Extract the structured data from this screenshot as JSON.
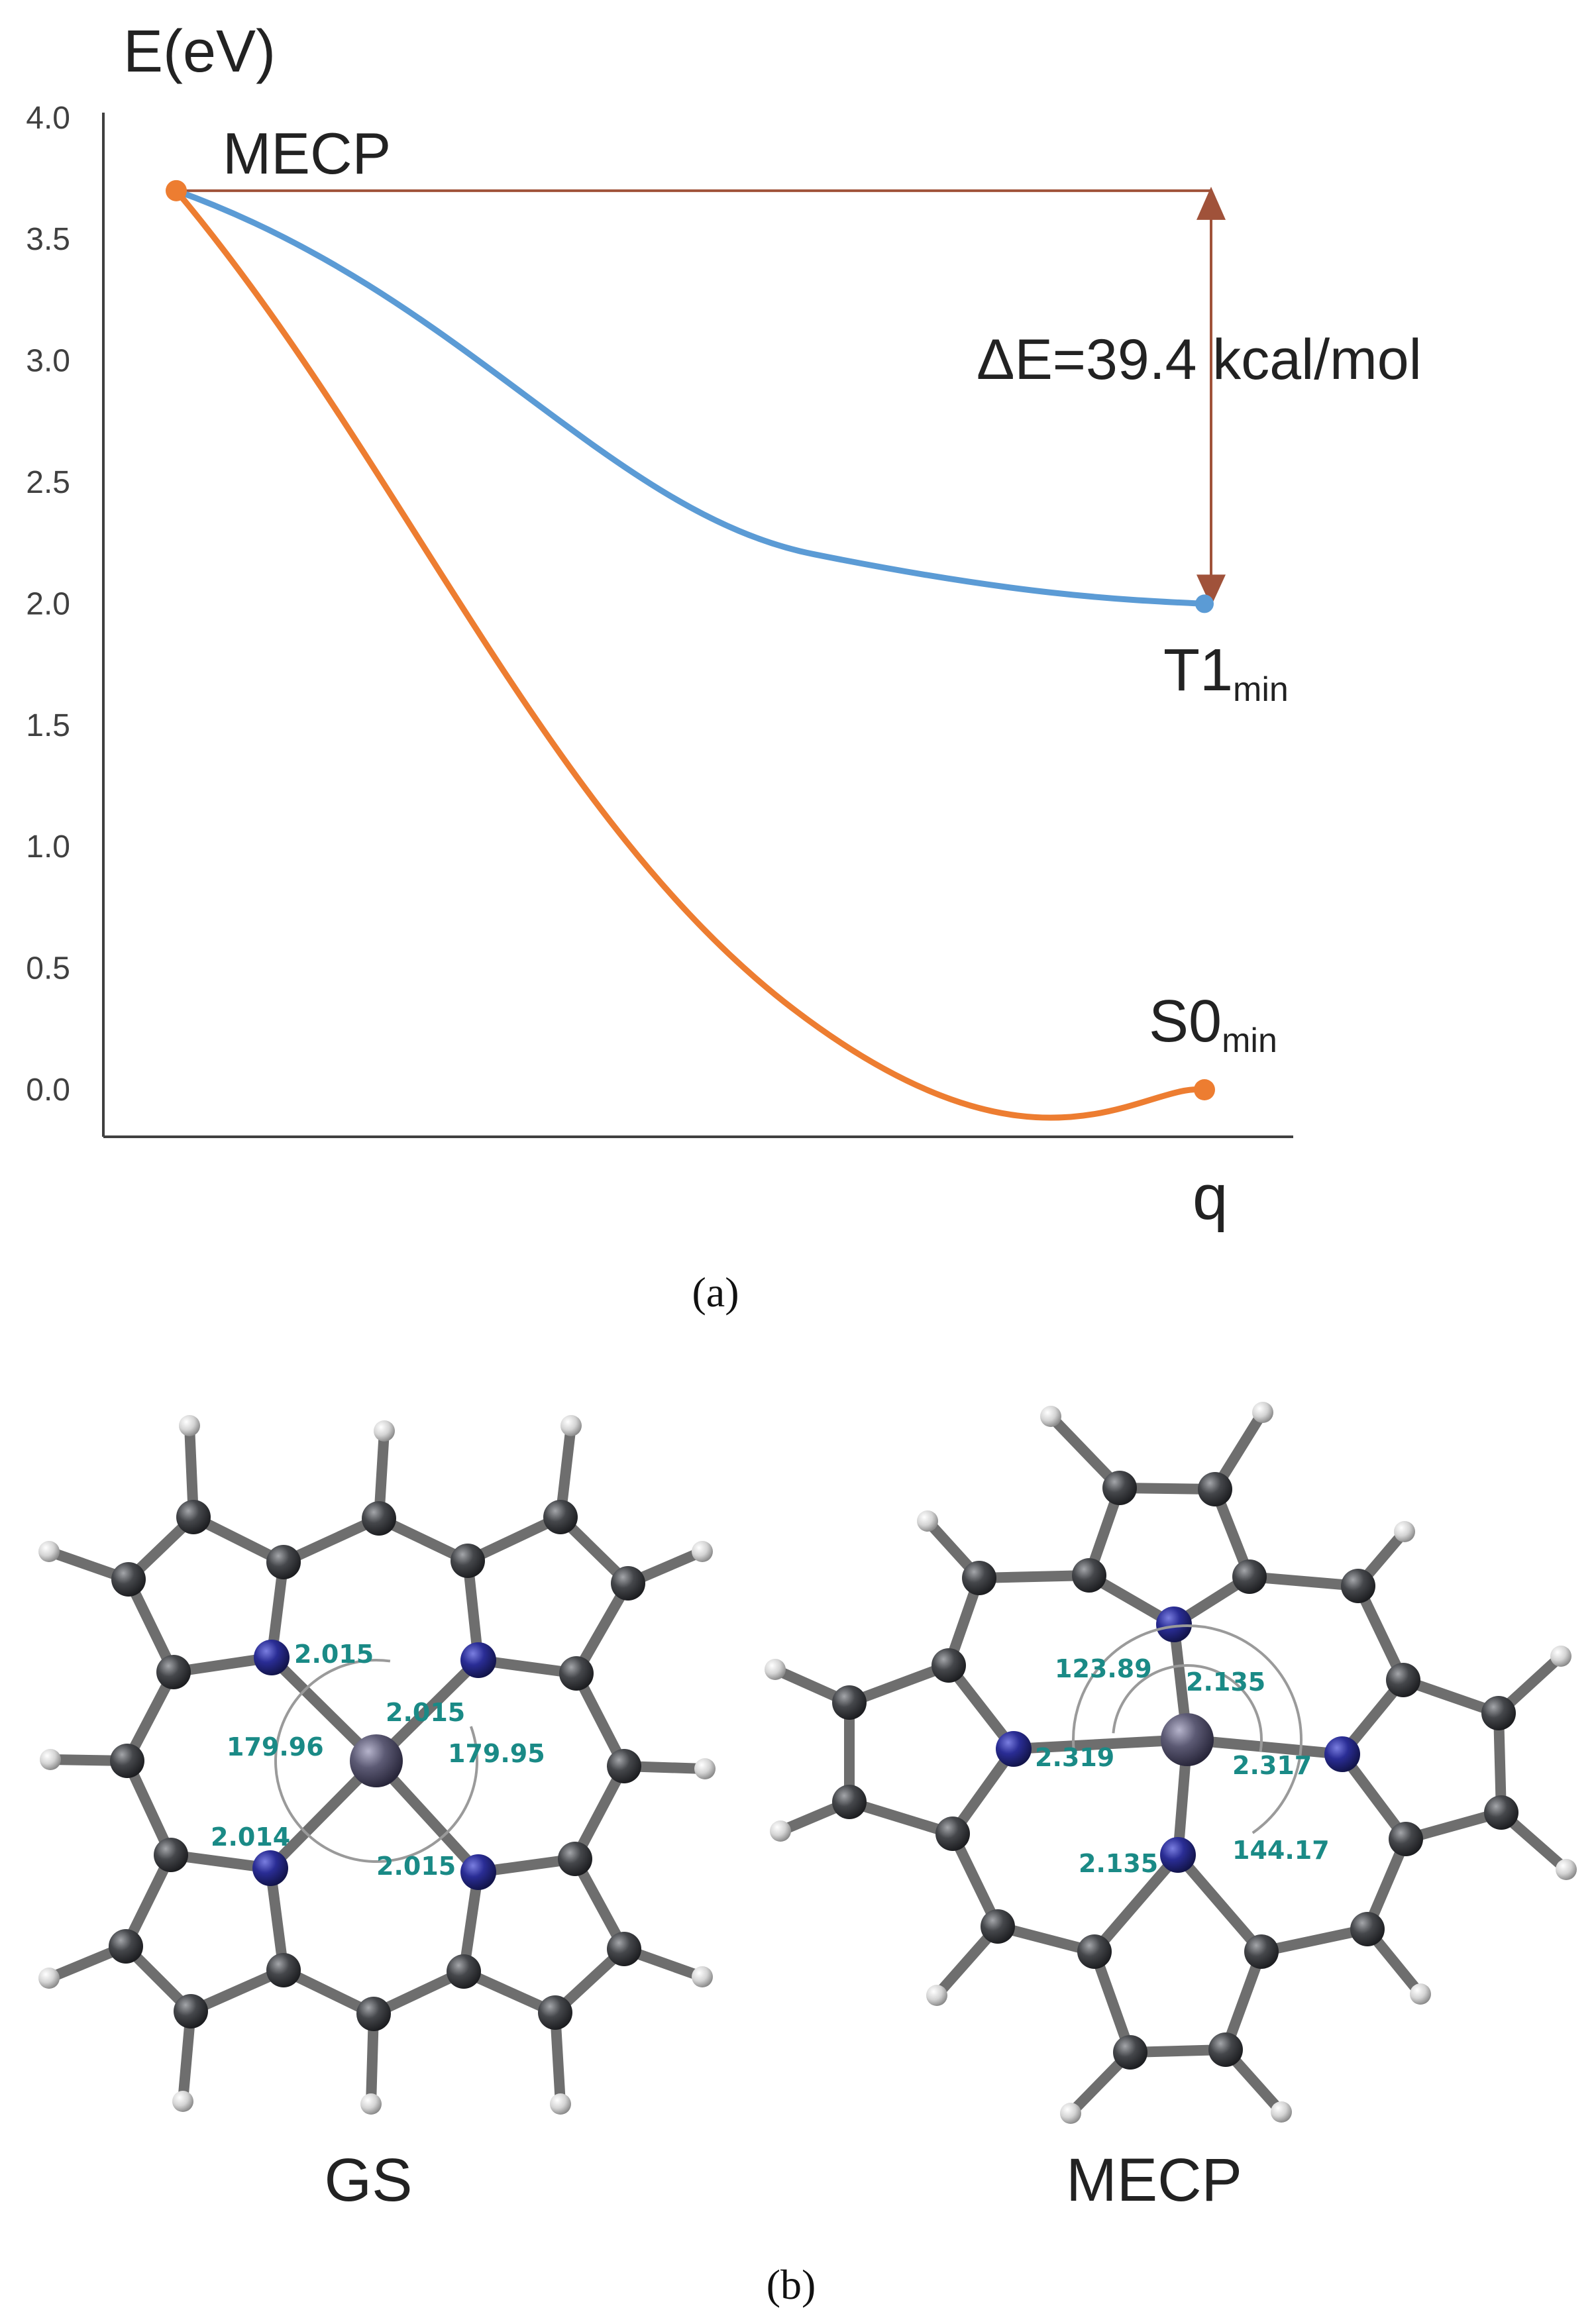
{
  "colors": {
    "t1_curve": "#5b9bd5",
    "s0_curve": "#ed7d31",
    "gap_arrow": "#a0523a",
    "axis": "#404040",
    "label_teal": "#1a8a86",
    "atom_c": "#3a3c40",
    "atom_n": "#272a8c",
    "atom_h": "#d6d6d6",
    "atom_metal": "#5a5870",
    "bond": "#6e6e6e"
  },
  "chart_data": {
    "type": "line",
    "ylabel": "E(eV)",
    "xlabel": "q",
    "ylim": [
      0,
      4.0
    ],
    "y_ticks": [
      "0.0",
      "0.5",
      "1.0",
      "1.5",
      "2.0",
      "2.5",
      "3.0",
      "3.5",
      "4.0"
    ],
    "series": [
      {
        "key": "t1",
        "x": [
          0,
          1
        ],
        "values": [
          3.7,
          2.0
        ]
      },
      {
        "key": "s0",
        "x": [
          0,
          1
        ],
        "values": [
          3.7,
          0.0
        ]
      }
    ],
    "annotations": {
      "start_label": "MECP",
      "t1_label_main": "T1",
      "t1_label_sub": "min",
      "s0_label_main": "S0",
      "s0_label_sub": "min",
      "gap_label": "ΔE=39.4 kcal/mol"
    },
    "panel_label": "(a)"
  },
  "molecules": {
    "panel_label": "(b)",
    "gs": {
      "name": "GS",
      "labels": [
        "2.015",
        "2.015",
        "179.96",
        "179.95",
        "2.014",
        "2.015"
      ]
    },
    "mecp": {
      "name": "MECP",
      "labels": [
        "123.89",
        "2.135",
        "2.319",
        "2.317",
        "2.135",
        "144.17"
      ]
    }
  }
}
